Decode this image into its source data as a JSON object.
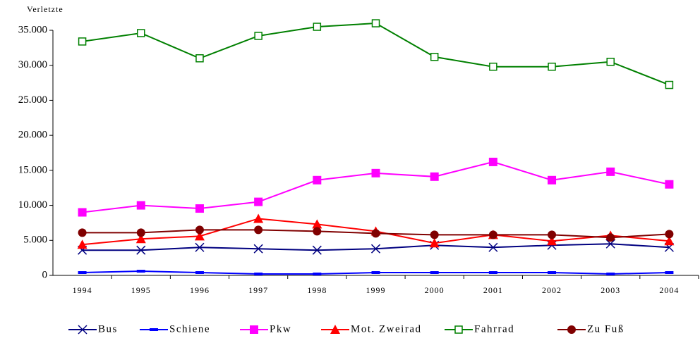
{
  "chart_data": {
    "type": "line",
    "y_label": "Verletzte",
    "categories": [
      "1994",
      "1995",
      "1996",
      "1997",
      "1998",
      "1999",
      "2000",
      "2001",
      "2002",
      "2003",
      "2004"
    ],
    "ylim": [
      0,
      35000
    ],
    "yticks": [
      0,
      {
        "value": 5000,
        "label": "5.000"
      },
      {
        "value": 10000,
        "label": "10.000"
      },
      {
        "value": 15000,
        "label": "15.000"
      },
      {
        "value": 20000,
        "label": "20.000"
      },
      {
        "value": 25000,
        "label": "25.000"
      },
      {
        "value": 30000,
        "label": "30.000"
      },
      {
        "value": 35000,
        "label": "35.000"
      }
    ],
    "legend": "bottom",
    "series": [
      {
        "name": "Bus",
        "color": "#000080",
        "marker": "x",
        "values": [
          3600,
          3600,
          4000,
          3800,
          3600,
          3800,
          4300,
          4000,
          4300,
          4500,
          4000
        ]
      },
      {
        "name": "Schiene",
        "color": "#0000ff",
        "marker": "dash",
        "values": [
          400,
          600,
          400,
          200,
          200,
          400,
          400,
          400,
          400,
          200,
          400
        ]
      },
      {
        "name": "Pkw",
        "color": "#ff00ff",
        "marker": "square",
        "values": [
          9000,
          10000,
          9550,
          10500,
          13600,
          14600,
          14100,
          16200,
          13600,
          14800,
          13000
        ]
      },
      {
        "name": "Mot. Zweirad",
        "color": "#ff0000",
        "marker": "triangle",
        "values": [
          4400,
          5200,
          5600,
          8100,
          7300,
          6300,
          4600,
          5800,
          4900,
          5700,
          4900
        ]
      },
      {
        "name": "Fahrrad",
        "color": "#008000",
        "marker": "open-square",
        "values": [
          33400,
          34600,
          31000,
          34200,
          35500,
          36000,
          31200,
          29800,
          29800,
          30500,
          27200
        ]
      },
      {
        "name": "Zu Fuß",
        "color": "#800000",
        "marker": "circle",
        "values": [
          6100,
          6100,
          6500,
          6500,
          6300,
          6000,
          5800,
          5800,
          5800,
          5400,
          5900
        ]
      }
    ]
  }
}
